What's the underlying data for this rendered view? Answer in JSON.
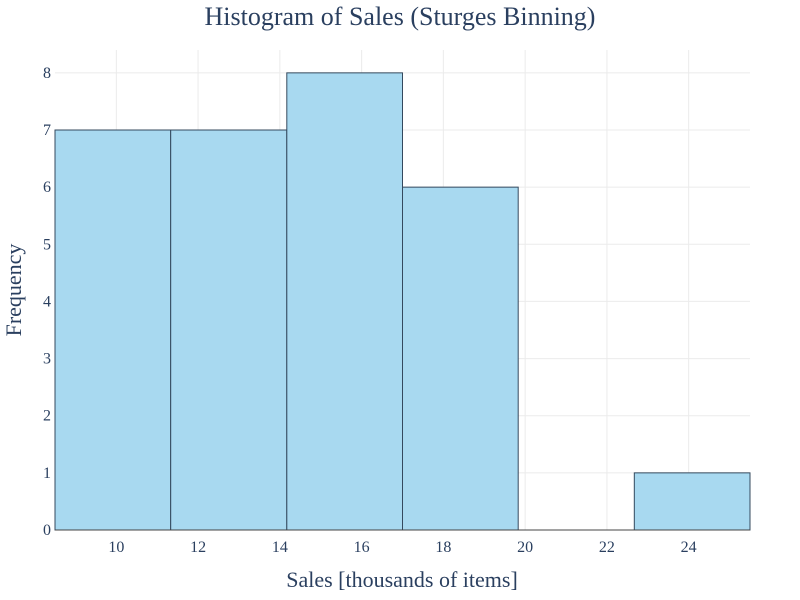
{
  "chart_data": {
    "type": "bar",
    "title": "Histogram of Sales (Sturges Binning)",
    "xlabel": "Sales [thousands of items]",
    "ylabel": "Frequency",
    "xlim": [
      8.5,
      25.5
    ],
    "ylim": [
      0,
      8.4
    ],
    "grid": true,
    "legend": "none",
    "bar_color": "#a8d9f0",
    "bar_edge_color": "#34495e",
    "x_ticks": [
      10,
      12,
      14,
      16,
      18,
      20,
      22,
      24
    ],
    "x_tick_labels": [
      "10",
      "12",
      "14",
      "16",
      "18",
      "20",
      "22",
      "24"
    ],
    "y_ticks": [
      0,
      1,
      2,
      3,
      4,
      5,
      6,
      7,
      8
    ],
    "y_tick_labels": [
      "0",
      "1",
      "2",
      "3",
      "4",
      "5",
      "6",
      "7",
      "8"
    ],
    "bins": [
      {
        "start": 8.5,
        "end": 11.33,
        "count": 7
      },
      {
        "start": 11.33,
        "end": 14.17,
        "count": 7
      },
      {
        "start": 14.17,
        "end": 17.0,
        "count": 8
      },
      {
        "start": 17.0,
        "end": 19.83,
        "count": 6
      },
      {
        "start": 19.83,
        "end": 22.67,
        "count": 0
      },
      {
        "start": 22.67,
        "end": 25.5,
        "count": 1
      }
    ]
  }
}
